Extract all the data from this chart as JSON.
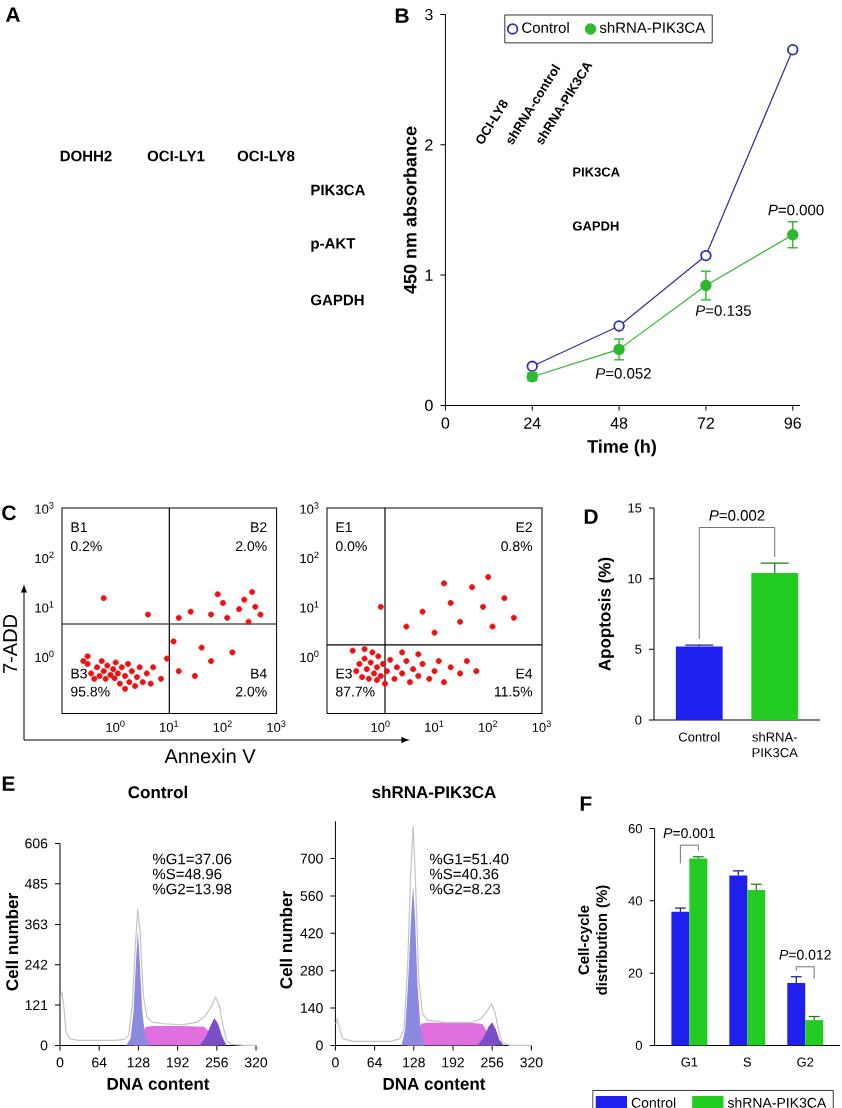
{
  "chart_data": [
    {
      "type": "other",
      "annotations": [
        "A",
        "DOHH2",
        "OCI-LY1",
        "OCI-LY8",
        "PIK3CA",
        "p-AKT",
        "GAPDH"
      ]
    },
    {
      "type": "line",
      "xlabel": "Time (h)",
      "ylabel": "450 nm absorbance",
      "x": [
        24,
        48,
        72,
        96
      ],
      "series": [
        {
          "name": "Control",
          "color": "#2e2ea6",
          "values": [
            0.3,
            0.61,
            1.15,
            2.73
          ]
        },
        {
          "name": "shRNA-PIK3CA",
          "color": "#2eb82e",
          "values": [
            0.22,
            0.43,
            0.92,
            1.31
          ],
          "errors": [
            0.03,
            0.08,
            0.11,
            0.1
          ]
        }
      ],
      "xlim": [
        0,
        98
      ],
      "xticks": [
        0,
        24,
        48,
        72,
        96
      ],
      "ylim": [
        0,
        3
      ],
      "yticks": [
        0,
        1,
        2,
        3
      ],
      "legend": "top",
      "marker": "circle",
      "annotations": [
        "B",
        "OCI-LY8",
        "shRNA-control",
        "shRNA-PIK3CA",
        "PIK3CA",
        "GAPDH",
        "*P*=0.052",
        "*P*=0.135",
        "*P*=0.000"
      ]
    },
    {
      "type": "scatter",
      "xlabel": "Annexin V",
      "ylabel": "7-ADD",
      "x": [
        0.3,
        0.35,
        0.4,
        0.45,
        0.5,
        0.55,
        0.6,
        0.65,
        0.7,
        0.8,
        0.9,
        0.95,
        1,
        1.1,
        1.2,
        1.3,
        1.5,
        1.5,
        1.7,
        1.8,
        2,
        2.3,
        2.5,
        2.8,
        3.2,
        3.8,
        4.5,
        5,
        7,
        0.3,
        0.25,
        9,
        15,
        30,
        60,
        12,
        40,
        150,
        15,
        25,
        60,
        100,
        120,
        200,
        250,
        300,
        400,
        500,
        350,
        80,
        4,
        0.6
      ],
      "values": [
        0.7,
        0.45,
        0.35,
        0.6,
        0.4,
        0.8,
        0.5,
        0.35,
        0.65,
        0.42,
        0.55,
        0.36,
        0.75,
        0.45,
        0.28,
        0.6,
        0.22,
        0.4,
        0.7,
        0.3,
        0.5,
        0.25,
        0.38,
        0.6,
        0.3,
        0.45,
        0.28,
        0.6,
        0.35,
        1.0,
        0.8,
        0.9,
        0.5,
        0.4,
        0.8,
        2,
        1.5,
        1.2,
        6,
        8,
        7,
        12,
        6,
        9,
        14,
        5,
        10,
        7,
        20,
        18,
        7,
        15
      ],
      "color": "#ee1111",
      "marker": "circle",
      "log": "xy",
      "xlim": [
        0.1,
        1000
      ],
      "ylim": [
        0.07,
        1000
      ],
      "xticks": [
        {
          "value": 1,
          "label": "10$^{0}$"
        },
        {
          "value": 10,
          "label": "10$^{1}$"
        },
        {
          "value": 100,
          "label": "10$^{2}$"
        },
        {
          "value": 1000,
          "label": "10$^{3}$"
        }
      ],
      "yticks": [
        {
          "value": 1,
          "label": "10$^{0}$"
        },
        {
          "value": 10,
          "label": "10$^{1}$"
        },
        {
          "value": 100,
          "label": "10$^{2}$"
        },
        {
          "value": 1000,
          "label": "10$^{3}$"
        }
      ],
      "ref_lines": [
        {
          "axis": "x",
          "value": 10,
          "color": "#000000"
        },
        {
          "axis": "y",
          "value": 4.5,
          "color": "#000000"
        }
      ],
      "annotations": [
        "C",
        "B1",
        "0.2%",
        "B2",
        "2.0%",
        "B3",
        "95.8%",
        "B4",
        "2.0%"
      ]
    },
    {
      "type": "scatter",
      "x": [
        0.35,
        0.4,
        0.45,
        0.5,
        0.55,
        0.6,
        0.65,
        0.7,
        0.75,
        0.85,
        0.85,
        0.9,
        1,
        1.1,
        1.2,
        1.3,
        1.5,
        0.3,
        0.5,
        1.8,
        2,
        2.5,
        3,
        3.5,
        4,
        5,
        6,
        8,
        10,
        12,
        15,
        20,
        30,
        40,
        60,
        2.5,
        5,
        3,
        6,
        10,
        20,
        30,
        50,
        80,
        120,
        200,
        15,
        300,
        1,
        100
      ],
      "values": [
        0.5,
        0.7,
        0.38,
        0.9,
        0.55,
        0.35,
        0.75,
        1.2,
        0.45,
        0.33,
        0.6,
        1.0,
        0.4,
        0.7,
        0.28,
        0.5,
        0.85,
        1.3,
        1.4,
        0.35,
        0.6,
        0.45,
        0.8,
        0.3,
        0.55,
        0.4,
        0.7,
        0.35,
        0.5,
        0.8,
        0.3,
        0.6,
        0.45,
        0.8,
        0.5,
        1.2,
        1.1,
        4,
        8,
        3,
        12,
        5,
        25,
        10,
        4,
        15,
        30,
        6,
        10,
        40
      ],
      "color": "#ee1111",
      "marker": "circle",
      "log": "xy",
      "xlim": [
        0.1,
        1000
      ],
      "ylim": [
        0.07,
        1000
      ],
      "xticks": [
        {
          "value": 1,
          "label": "10$^{0}$"
        },
        {
          "value": 10,
          "label": "10$^{1}$"
        },
        {
          "value": 100,
          "label": "10$^{2}$"
        },
        {
          "value": 1000,
          "label": "10$^{3}$"
        }
      ],
      "yticks": [
        {
          "value": 1,
          "label": "10$^{0}$"
        },
        {
          "value": 10,
          "label": "10$^{1}$"
        },
        {
          "value": 100,
          "label": "10$^{2}$"
        },
        {
          "value": 1000,
          "label": "10$^{3}$"
        }
      ],
      "ref_lines": [
        {
          "axis": "x",
          "value": 1.2,
          "color": "#000000"
        },
        {
          "axis": "y",
          "value": 1.7,
          "color": "#000000"
        }
      ],
      "annotations": [
        "E1",
        "0.0%",
        "E2",
        "0.8%",
        "E3",
        "87.7%",
        "E4",
        "11.5%"
      ]
    },
    {
      "type": "bar",
      "ylabel": "Apoptosis (%)",
      "categories": [
        "Control",
        "shRNA-PIK3CA"
      ],
      "values": [
        5.2,
        10.4
      ],
      "colors": [
        "#2020ee",
        "#22cc22"
      ],
      "errors": [
        [
          5.2,
          5.3
        ],
        [
          10.4,
          11.1
        ]
      ],
      "ylim": [
        0,
        15
      ],
      "yticks": [
        0,
        5,
        10,
        15
      ],
      "annotations": [
        "D",
        "*P*=0.002"
      ]
    },
    {
      "type": "area",
      "title": "Control",
      "xlabel": "DNA content",
      "ylabel": "Cell number",
      "series": [
        {
          "color": "#e070e0",
          "x": [
            120,
            140,
            150,
            200,
            235,
            250,
            258
          ],
          "values": [
            0,
            55,
            58,
            58,
            56,
            30,
            0
          ]
        },
        {
          "color": "#8a8ae0",
          "x": [
            108,
            115,
            120,
            124,
            127,
            130,
            134,
            139,
            145
          ],
          "values": [
            0,
            20,
            100,
            250,
            342,
            260,
            110,
            25,
            0
          ]
        },
        {
          "color": "#7a4ec8",
          "x": [
            228,
            238,
            246,
            252,
            258,
            265,
            272
          ],
          "values": [
            0,
            25,
            60,
            82,
            65,
            25,
            0
          ]
        },
        {
          "type": "line",
          "color": "#c4c4c4",
          "x": [
            1,
            3,
            6,
            10,
            16,
            30,
            60,
            90,
            105,
            112,
            118,
            123,
            127,
            131,
            136,
            142,
            150,
            170,
            200,
            225,
            238,
            248,
            254,
            260,
            266,
            272,
            280,
            300,
            320
          ],
          "values": [
            140,
            160,
            120,
            40,
            20,
            15,
            15,
            15,
            18,
            30,
            120,
            300,
            410,
            330,
            150,
            85,
            70,
            65,
            62,
            70,
            90,
            120,
            145,
            120,
            60,
            15,
            3,
            0,
            0
          ]
        }
      ],
      "xlim": [
        0,
        320
      ],
      "xticks": [
        0,
        64,
        128,
        192,
        256,
        320
      ],
      "ylim": [
        0,
        606
      ],
      "yticks": [
        0,
        121,
        242,
        363,
        485,
        606
      ],
      "annotations": [
        "E",
        "%G1=37.06",
        "%S=48.96",
        "%G2=13.98"
      ]
    },
    {
      "type": "area",
      "title": "shRNA-PIK3CA",
      "xlabel": "DNA content",
      "ylabel": "Cell number",
      "series": [
        {
          "color": "#e070e0",
          "x": [
            118,
            141,
            150,
            220,
            240,
            252,
            262
          ],
          "values": [
            0,
            82,
            85,
            85,
            80,
            35,
            0
          ]
        },
        {
          "color": "#8a8ae0",
          "x": [
            108,
            114,
            119,
            124,
            127,
            130,
            134,
            139,
            145
          ],
          "values": [
            0,
            60,
            250,
            500,
            595,
            480,
            230,
            60,
            0
          ]
        },
        {
          "color": "#7a4ec8",
          "x": [
            232,
            242,
            250,
            256,
            262,
            268,
            275
          ],
          "values": [
            0,
            30,
            70,
            87,
            60,
            20,
            0
          ]
        },
        {
          "type": "line",
          "color": "#c4c4c4",
          "x": [
            1,
            3,
            6,
            12,
            30,
            90,
            105,
            112,
            118,
            123,
            127,
            131,
            136,
            142,
            150,
            180,
            220,
            238,
            248,
            255,
            261,
            267,
            273,
            285,
            320
          ],
          "values": [
            80,
            100,
            70,
            25,
            15,
            15,
            25,
            60,
            300,
            650,
            820,
            600,
            250,
            120,
            95,
            85,
            85,
            100,
            130,
            157,
            120,
            50,
            10,
            0,
            0
          ]
        }
      ],
      "xlim": [
        0,
        320
      ],
      "xticks": [
        0,
        64,
        128,
        192,
        256,
        320
      ],
      "ylim": [
        0,
        840
      ],
      "yticks": [
        0,
        140,
        280,
        420,
        560,
        700
      ],
      "annotations": [
        "%G1=51.40",
        "%S=40.36",
        "%G2=8.23"
      ]
    },
    {
      "type": "bar",
      "ylabel": "Cell-cycle distribution (%)",
      "categories": [
        "G1",
        "S",
        "G2"
      ],
      "series": [
        {
          "name": "Control",
          "color": "#2020ee",
          "values": [
            37,
            47,
            17.3
          ],
          "errors": [
            [
              37,
              38
            ],
            [
              47,
              48.3
            ],
            [
              17.3,
              19
            ]
          ]
        },
        {
          "name": "shRNA-PIK3CA",
          "color": "#22cc22",
          "values": [
            51.7,
            43,
            7
          ],
          "errors": [
            [
              51.7,
              52.2
            ],
            [
              43,
              44.6
            ],
            [
              7,
              8
            ]
          ]
        }
      ],
      "ylim": [
        0,
        60
      ],
      "yticks": [
        0,
        20,
        40,
        60
      ],
      "legend": "bottom",
      "annotations": [
        "F",
        "*P*=0.001",
        "*P*=0.012"
      ]
    }
  ]
}
